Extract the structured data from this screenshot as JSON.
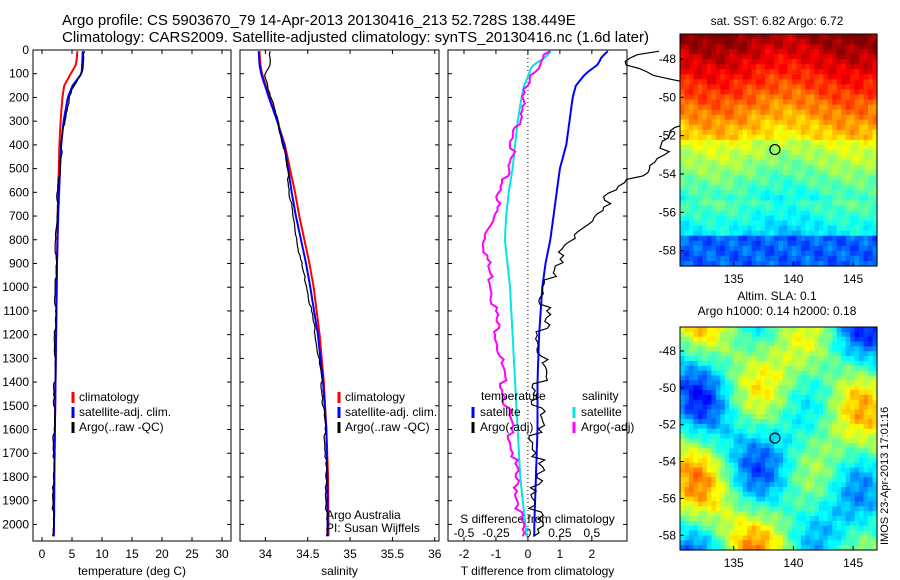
{
  "header": {
    "line1": "Argo profile: CS 5903670_79 14-Apr-2013 20130416_213 52.728S 138.449E",
    "line2": "Climatology: CARS2009. Satellite-adjusted climatology: synTS_20130416.nc (1.6d later)"
  },
  "credit": {
    "line1": "Argo Australia",
    "line2": "PI: Susan Wijffels"
  },
  "stamp": "IMOS 23-Apr-2013 17:01:16",
  "colors": {
    "clim": "#ff0000",
    "sat": "#0000ff",
    "argo": "#000000",
    "sat_s": "#00e5e5",
    "argo_s": "#ff00ff"
  },
  "chart_data": [
    {
      "type": "line",
      "id": "temperature",
      "xlabel": "temperature (deg C)",
      "ylabel": "",
      "xlim": [
        -1.5,
        31.5
      ],
      "ylim": [
        2070,
        0
      ],
      "xticks": [
        0,
        5,
        10,
        15,
        20,
        25,
        30
      ],
      "yticks": [
        0,
        100,
        200,
        300,
        400,
        500,
        600,
        700,
        800,
        900,
        1000,
        1100,
        1200,
        1300,
        1400,
        1500,
        1600,
        1700,
        1800,
        1900,
        2000
      ],
      "depth": [
        5,
        60,
        100,
        150,
        200,
        300,
        400,
        500,
        600,
        700,
        800,
        900,
        1000,
        1200,
        1400,
        1600,
        1800,
        2000,
        2050
      ],
      "legend": [
        "climatology",
        "satellite-adj. clim.",
        "Argo(..raw -QC)"
      ],
      "series": [
        {
          "name": "climatology",
          "values": [
            5.9,
            5.7,
            4.8,
            3.7,
            3.4,
            3.1,
            2.9,
            2.8,
            2.7,
            2.6,
            2.55,
            2.5,
            2.45,
            2.35,
            2.25,
            2.15,
            2.05,
            2.0,
            1.95
          ]
        },
        {
          "name": "satellite-adj. clim.",
          "values": [
            6.8,
            6.7,
            6.6,
            5.1,
            4.3,
            3.6,
            3.2,
            3.0,
            2.85,
            2.7,
            2.6,
            2.5,
            2.45,
            2.35,
            2.25,
            2.15,
            2.05,
            2.0,
            1.95
          ]
        },
        {
          "name": "Argo(..raw -QC)",
          "values": [
            7.0,
            6.9,
            6.7,
            5.5,
            4.6,
            3.8,
            3.4,
            3.0,
            2.7,
            2.6,
            2.4,
            2.45,
            2.4,
            2.3,
            2.2,
            2.1,
            2.0,
            1.95,
            1.9
          ]
        }
      ]
    },
    {
      "type": "line",
      "id": "salinity",
      "xlabel": "salinity",
      "ylabel": "",
      "xlim": [
        33.7,
        36.05
      ],
      "ylim": [
        2070,
        0
      ],
      "xticks": [
        34,
        34.5,
        35,
        35.5,
        36
      ],
      "xticklabels": [
        "34",
        "34.5",
        "35",
        "35.5",
        "36"
      ],
      "depth": [
        5,
        60,
        100,
        200,
        300,
        400,
        500,
        600,
        700,
        800,
        900,
        1000,
        1200,
        1400,
        1600,
        1800,
        2000,
        2050
      ],
      "legend": [
        "climatology",
        "satellite-adj. clim.",
        "Argo(..raw -QC)"
      ],
      "series": [
        {
          "name": "climatology",
          "values": [
            33.93,
            33.94,
            33.96,
            34.05,
            34.14,
            34.23,
            34.29,
            34.35,
            34.4,
            34.46,
            34.52,
            34.57,
            34.64,
            34.69,
            34.72,
            34.74,
            34.745,
            34.745
          ]
        },
        {
          "name": "satellite-adj. clim.",
          "values": [
            33.92,
            33.93,
            33.95,
            34.04,
            34.14,
            34.22,
            34.27,
            34.31,
            34.36,
            34.42,
            34.48,
            34.53,
            34.62,
            34.68,
            34.72,
            34.73,
            34.735,
            34.735
          ]
        },
        {
          "name": "Argo(..raw -QC)",
          "values": [
            34.05,
            34.06,
            34.0,
            34.07,
            34.15,
            34.22,
            34.26,
            34.29,
            34.33,
            34.38,
            34.43,
            34.5,
            34.6,
            34.67,
            34.71,
            34.72,
            34.73,
            34.73
          ]
        }
      ]
    },
    {
      "type": "line",
      "id": "difference",
      "xlabel": "T difference from climatology",
      "xlabel2": "S difference from climatology",
      "xlim": [
        -2.5,
        3.1
      ],
      "ylim": [
        2070,
        0
      ],
      "xticks": [
        -2,
        -1,
        0,
        1,
        2
      ],
      "s_ticks": [
        -0.5,
        -0.25,
        0,
        0.25,
        0.5
      ],
      "s_ticklabels": [
        "-0.5",
        "-0.25",
        "0",
        "0.25",
        "0.5"
      ],
      "depth": [
        5,
        30,
        60,
        80,
        100,
        150,
        200,
        300,
        400,
        500,
        600,
        700,
        800,
        900,
        1000,
        1200,
        1400,
        1600,
        1800,
        2000,
        2050
      ],
      "legend_headers": [
        "temperature",
        "salinity"
      ],
      "legend": [
        "satellite",
        "Argo(-adj)",
        "satellite",
        "Argo(-adj)"
      ],
      "series": [
        {
          "name": "satellite",
          "group": "temperature",
          "values": [
            2.5,
            2.3,
            2.2,
            2.0,
            1.8,
            1.5,
            1.4,
            1.3,
            1.2,
            1.0,
            0.9,
            0.8,
            0.7,
            0.55,
            0.45,
            0.35,
            0.3,
            0.3,
            0.25,
            0.2,
            0.2
          ]
        },
        {
          "name": "Argo(-adj)",
          "group": "temperature",
          "values": [
            4.0,
            3.2,
            3.0,
            3.5,
            4.0,
            5.5,
            5.6,
            5.0,
            4.5,
            3.8,
            2.8,
            2.2,
            1.6,
            1.0,
            0.75,
            0.6,
            0.5,
            0.4,
            0.4,
            0.4,
            0.35
          ]
        },
        {
          "name": "satellite",
          "group": "salinity",
          "values": [
            0.18,
            0.14,
            0.05,
            0.02,
            0.01,
            -0.03,
            -0.05,
            -0.08,
            -0.1,
            -0.12,
            -0.15,
            -0.17,
            -0.18,
            -0.16,
            -0.14,
            -0.12,
            -0.1,
            -0.08,
            -0.06,
            -0.02,
            -0.01
          ]
        },
        {
          "name": "Argo(-adj)",
          "group": "salinity",
          "values": [
            0.16,
            0.12,
            0.1,
            0.08,
            0.06,
            0.02,
            -0.03,
            -0.06,
            -0.1,
            -0.15,
            -0.2,
            -0.25,
            -0.32,
            -0.3,
            -0.26,
            -0.22,
            -0.18,
            -0.12,
            -0.08,
            -0.04,
            -0.02
          ]
        }
      ]
    },
    {
      "type": "heatmap",
      "id": "sst-map",
      "title": "sat. SST: 6.82  Argo: 6.72",
      "xlim": [
        130.5,
        147
      ],
      "ylim": [
        -58.8,
        -46.7
      ],
      "xticks": [
        135,
        140,
        145
      ],
      "yticks": [
        -48,
        -50,
        -52,
        -54,
        -56,
        -58
      ],
      "marker": {
        "lon": 138.449,
        "lat": -52.728
      }
    },
    {
      "type": "heatmap",
      "id": "sla-map",
      "title": "Altim. SLA: 0.1",
      "title2": "Argo h1000: 0.14 h2000: 0.18",
      "xlim": [
        130.5,
        147
      ],
      "ylim": [
        -58.8,
        -46.7
      ],
      "xticks": [
        135,
        140,
        145
      ],
      "yticks": [
        -48,
        -50,
        -52,
        -54,
        -56,
        -58
      ],
      "marker": {
        "lon": 138.449,
        "lat": -52.728
      }
    }
  ]
}
